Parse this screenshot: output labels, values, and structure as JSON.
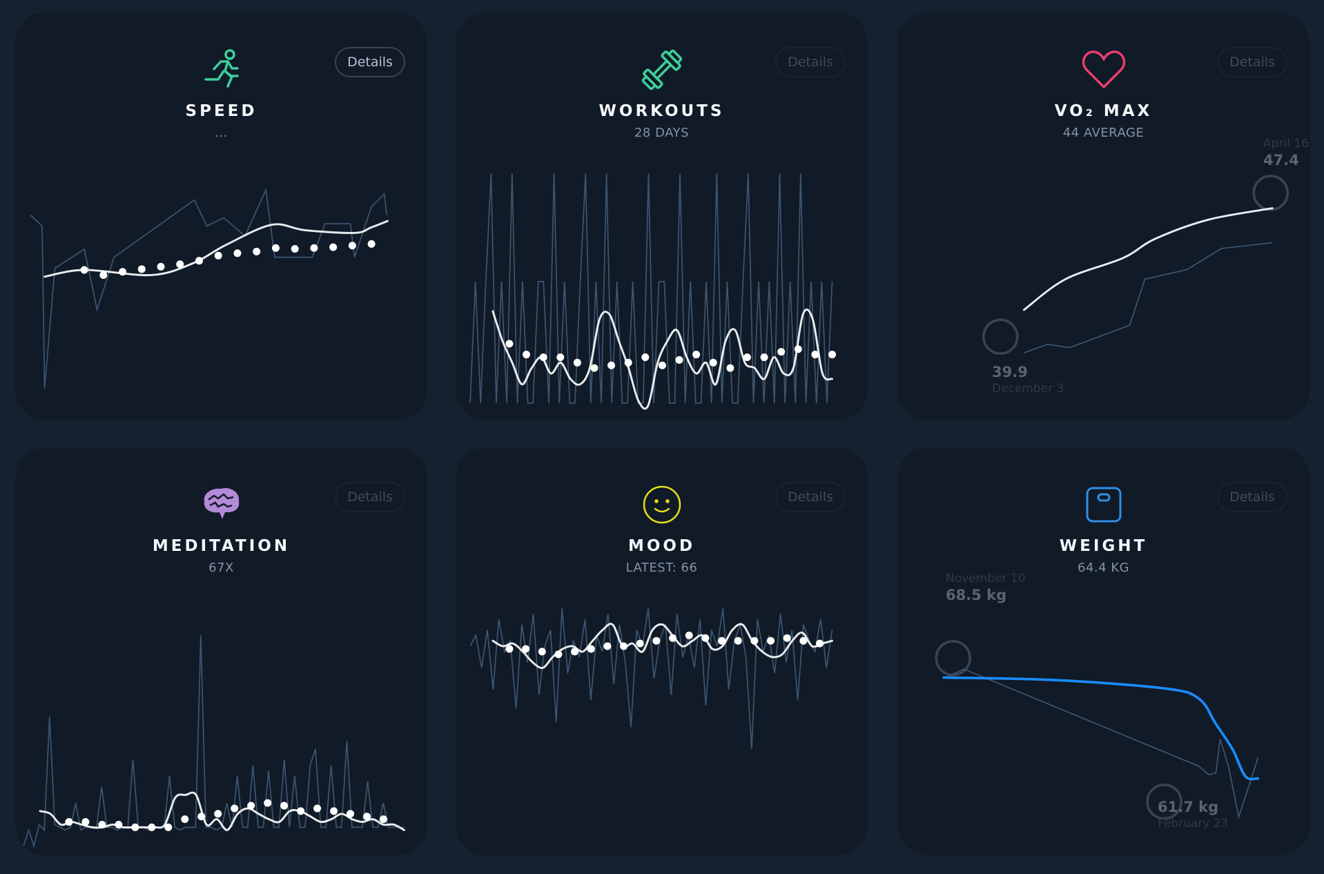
{
  "colors": {
    "background": "#162130",
    "card": "#111a27",
    "raw_line": "#3b5670",
    "trend_line": "#e8ecef",
    "weight_trend": "#1a8cff",
    "marker": "#3b4350"
  },
  "cards": [
    {
      "title": "SPEED",
      "subtitle": "...",
      "details_label": "Details",
      "icon": "running-person-icon",
      "icon_color": "#3ecf9a"
    },
    {
      "title": "WORKOUTS",
      "subtitle": "28 DAYS",
      "details_label": "Details",
      "icon": "dumbbell-icon",
      "icon_color": "#3ecf9a"
    },
    {
      "title": "VO₂ MAX",
      "subtitle": "44 AVERAGE",
      "details_label": "Details",
      "icon": "heart-icon",
      "icon_color": "#e83e6c",
      "max_label": {
        "date": "April 16",
        "value": "47.4"
      },
      "min_label": {
        "value": "39.9",
        "date": "December 3"
      }
    },
    {
      "title": "MEDITATION",
      "subtitle": "67X",
      "details_label": "Details",
      "icon": "brain-icon",
      "icon_color": "#b48ad8"
    },
    {
      "title": "MOOD",
      "subtitle": "LATEST: 66",
      "details_label": "Details",
      "icon": "smiley-icon",
      "icon_color": "#e6e01c"
    },
    {
      "title": "WEIGHT",
      "subtitle": "64.4 KG",
      "details_label": "Details",
      "icon": "scale-icon",
      "icon_color": "#2f8fe6",
      "max_label": {
        "date": "November 10",
        "value": "68.5 kg"
      },
      "min_label": {
        "value": "61.7 kg",
        "date": "February 23"
      }
    }
  ],
  "chart_data": [
    {
      "type": "line",
      "name": "speed",
      "ylim": [
        0,
        100
      ],
      "raw": [
        [
          3.7,
          76.6
        ],
        [
          6.5,
          72.5
        ],
        [
          7.1,
          12.5
        ],
        [
          9.6,
          56.9
        ],
        [
          16.7,
          64
        ],
        [
          19.8,
          41.6
        ],
        [
          23.9,
          61
        ],
        [
          43.3,
          82.2
        ],
        [
          46.3,
          72.5
        ],
        [
          50.4,
          75.6
        ],
        [
          55.5,
          68.8
        ],
        [
          60.6,
          85.9
        ],
        [
          62.7,
          61
        ],
        [
          71.8,
          61
        ],
        [
          74.9,
          73.4
        ],
        [
          81,
          73.4
        ],
        [
          82,
          61
        ],
        [
          86.1,
          79.7
        ],
        [
          89.2,
          84.4
        ],
        [
          89.8,
          76.6
        ]
      ],
      "trend": [
        [
          7.1,
          53.8
        ],
        [
          16.7,
          56.3
        ],
        [
          33,
          54.4
        ],
        [
          43,
          58.8
        ],
        [
          51,
          65.6
        ],
        [
          62,
          73
        ],
        [
          70,
          71
        ],
        [
          82,
          70
        ],
        [
          86,
          72
        ],
        [
          90,
          74.4
        ]
      ],
      "dots": {
        "x_range": [
          16.7,
          86.1
        ],
        "values": [
          56.3,
          54.4,
          55.6,
          56.6,
          57.5,
          58.4,
          59.7,
          61.6,
          62.5,
          63.1,
          64.4,
          64.1,
          64.4,
          64.7,
          65.3,
          65.9
        ]
      }
    },
    {
      "type": "line",
      "name": "workouts",
      "ylim": [
        0,
        100
      ],
      "raw": {
        "x_range": [
          3.5,
          91
        ],
        "values": [
          7,
          52,
          7,
          52,
          92,
          7,
          52,
          7,
          92,
          7,
          52,
          7,
          7,
          52,
          52,
          7,
          92,
          7,
          52,
          7,
          7,
          52,
          92,
          7,
          52,
          7,
          92,
          7,
          52,
          7,
          7,
          52,
          7,
          7,
          92,
          7,
          52,
          52,
          7,
          7,
          92,
          7,
          52,
          7,
          7,
          52,
          7,
          92,
          7,
          52,
          7,
          7,
          52,
          92,
          7,
          52,
          7,
          52,
          7,
          92,
          7,
          52,
          7,
          92,
          7,
          52,
          7,
          52,
          7,
          52
        ]
      },
      "trend": {
        "x_range": [
          9,
          91
        ],
        "values": [
          41,
          30,
          22,
          14,
          20,
          24,
          18,
          22,
          16,
          14,
          20,
          38,
          40,
          30,
          20,
          8,
          6,
          22,
          30,
          34,
          24,
          18,
          22,
          14,
          30,
          34,
          22,
          20,
          16,
          24,
          18,
          20,
          40,
          38,
          18,
          16
        ]
      },
      "dots": {
        "x_range": [
          13,
          91
        ],
        "values": [
          29,
          25,
          24,
          24,
          22,
          20,
          21,
          22,
          24,
          21,
          23,
          25,
          22,
          20,
          24,
          24,
          26,
          27,
          25,
          25
        ]
      }
    },
    {
      "type": "line",
      "name": "vo2max",
      "xlabel": "",
      "ylim": [
        38,
        48
      ],
      "raw": [
        [
          11.8,
          39.06
        ],
        [
          23.6,
          39.5
        ],
        [
          34.6,
          39.33
        ],
        [
          64.6,
          40.5
        ],
        [
          72.2,
          42.9
        ],
        [
          93.2,
          43.4
        ],
        [
          110.5,
          44.5
        ],
        [
          135.9,
          44.8
        ]
      ],
      "trend": [
        [
          11.8,
          41.3
        ],
        [
          32.5,
          42.9
        ],
        [
          61.2,
          44.0
        ],
        [
          77.2,
          45.0
        ],
        [
          103.8,
          46.0
        ],
        [
          135.9,
          46.6
        ]
      ],
      "markers": [
        [
          0,
          39.9
        ],
        [
          135,
          47.4
        ]
      ]
    },
    {
      "type": "line",
      "name": "meditation",
      "ylim": [
        0,
        100
      ],
      "raw": {
        "x_range": [
          2,
          94
        ],
        "values": [
          4,
          10,
          4,
          12,
          10,
          52,
          12,
          11,
          10,
          11,
          20,
          10,
          11,
          11,
          11,
          26,
          11,
          11,
          10,
          11,
          11,
          36,
          11,
          11,
          10,
          11,
          11,
          11,
          30,
          11,
          10,
          11,
          11,
          11,
          82,
          11,
          11,
          10,
          11,
          20,
          11,
          30,
          11,
          11,
          34,
          11,
          11,
          32,
          11,
          11,
          36,
          11,
          30,
          11,
          11,
          34,
          40,
          11,
          11,
          34,
          11,
          11,
          43,
          11,
          11,
          11,
          28,
          11,
          11,
          20,
          11,
          11,
          11,
          11
        ]
      },
      "trend": {
        "x_range": [
          6,
          94
        ],
        "values": [
          17,
          16,
          12,
          13,
          12,
          11,
          11,
          12,
          11,
          11,
          11,
          11,
          12,
          22,
          23,
          23,
          12,
          14,
          10,
          16,
          18,
          16,
          14,
          13,
          17,
          17,
          15,
          13,
          14,
          16,
          14,
          13,
          14,
          12,
          12,
          10
        ]
      },
      "dots": {
        "x_range": [
          13,
          89
        ],
        "values": [
          13,
          13,
          12,
          12,
          11,
          11,
          11,
          14,
          15,
          16,
          18,
          19,
          20,
          19,
          17,
          18,
          17,
          16,
          15,
          14
        ]
      }
    },
    {
      "type": "line",
      "name": "mood",
      "ylim": [
        0,
        100
      ],
      "raw": {
        "x_range": [
          3.5,
          91
        ],
        "values": [
          78,
          82,
          70,
          84,
          62,
          88,
          76,
          80,
          55,
          86,
          72,
          90,
          60,
          78,
          84,
          50,
          92,
          68,
          80,
          74,
          88,
          58,
          82,
          76,
          90,
          64,
          86,
          72,
          48,
          84,
          78,
          92,
          66,
          80,
          86,
          60,
          90,
          74,
          82,
          70,
          88,
          56,
          84,
          78,
          92,
          62,
          80,
          86,
          74,
          40,
          88,
          76,
          82,
          68,
          90,
          72,
          84,
          58,
          86,
          80,
          76,
          88,
          70,
          84
        ]
      },
      "trend": {
        "x_range": [
          9,
          91
        ],
        "values": [
          80,
          78,
          79,
          76,
          72,
          70,
          74,
          77,
          78,
          76,
          80,
          84,
          86,
          78,
          79,
          76,
          84,
          86,
          82,
          78,
          80,
          82,
          77,
          78,
          84,
          86,
          80,
          76,
          74,
          75,
          80,
          83,
          78,
          79,
          80
        ]
      },
      "dots": {
        "x_range": [
          13,
          88
        ],
        "values": [
          77,
          77,
          76,
          75,
          76,
          77,
          78,
          78,
          79,
          80,
          81,
          82,
          81,
          80,
          80,
          80,
          80,
          81,
          80,
          79
        ]
      }
    },
    {
      "type": "line",
      "name": "weight",
      "ylim": [
        59,
        70
      ],
      "raw": [
        [
          1.8,
          67.58
        ],
        [
          7.6,
          67.98
        ],
        [
          80.8,
          63.38
        ],
        [
          83.9,
          62.98
        ],
        [
          86.1,
          63.06
        ],
        [
          87.4,
          64.66
        ],
        [
          90,
          63.38
        ],
        [
          93.2,
          60.98
        ],
        [
          99.2,
          63.78
        ]
      ],
      "trend": [
        [
          1.3,
          67.58
        ],
        [
          36,
          67.46
        ],
        [
          70.3,
          67.06
        ],
        [
          80.8,
          66.58
        ],
        [
          86.1,
          65.38
        ],
        [
          91.3,
          64.18
        ],
        [
          95.3,
          62.9
        ],
        [
          99.2,
          62.8
        ]
      ],
      "markers": [
        [
          4.2,
          68.5
        ],
        [
          70,
          61.7
        ]
      ]
    }
  ]
}
